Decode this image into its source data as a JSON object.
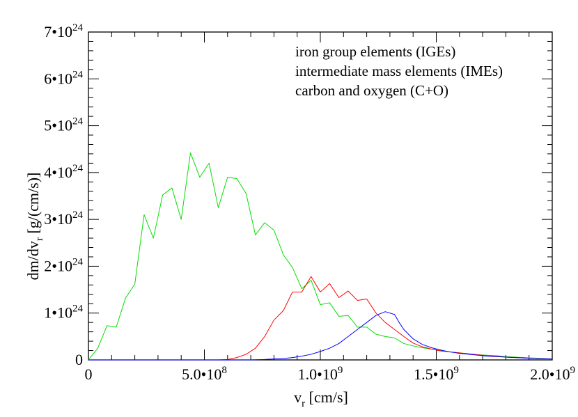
{
  "chart_data": {
    "type": "line",
    "title": "",
    "xlabel": {
      "main": "v",
      "sub": "r",
      "rest": " [cm/s]"
    },
    "ylabel": {
      "main": "dm/dv",
      "sub": "r",
      "rest": " [g/(cm/s)]"
    },
    "xlim": [
      0,
      2000000000
    ],
    "ylim": [
      0,
      7e+24
    ],
    "legend_placement": "top-right",
    "grid": false,
    "x_ticks": [
      {
        "value": 0,
        "mantissa": "0",
        "exponent": ""
      },
      {
        "value": 500000000,
        "mantissa": "5.0•10",
        "exponent": "8"
      },
      {
        "value": 1000000000,
        "mantissa": "1.0•10",
        "exponent": "9"
      },
      {
        "value": 1500000000,
        "mantissa": "1.5•10",
        "exponent": "9"
      },
      {
        "value": 2000000000,
        "mantissa": "2.0•10",
        "exponent": "9"
      }
    ],
    "y_ticks": [
      {
        "value": 0,
        "mantissa": "0",
        "exponent": ""
      },
      {
        "value": 1e+24,
        "mantissa": "1•10",
        "exponent": "24"
      },
      {
        "value": 2e+24,
        "mantissa": "2•10",
        "exponent": "24"
      },
      {
        "value": 3e+24,
        "mantissa": "3•10",
        "exponent": "24"
      },
      {
        "value": 4e+24,
        "mantissa": "4•10",
        "exponent": "24"
      },
      {
        "value": 5e+24,
        "mantissa": "5•10",
        "exponent": "24"
      },
      {
        "value": 6e+24,
        "mantissa": "6•10",
        "exponent": "24"
      },
      {
        "value": 7e+24,
        "mantissa": "7•10",
        "exponent": "24"
      }
    ],
    "x_minor_step": 100000000,
    "y_minor_step": 200000000000000000000000,
    "series": [
      {
        "name": "iron group elements  (IGEs)",
        "color": "#00e000",
        "x": [
          0,
          40000000,
          80000000,
          120000000,
          160000000,
          200000000,
          240000000,
          280000000,
          320000000,
          360000000,
          400000000,
          440000000,
          480000000,
          520000000,
          560000000,
          600000000,
          640000000,
          680000000,
          720000000,
          760000000,
          800000000,
          840000000,
          880000000,
          920000000,
          960000000,
          1000000000,
          1040000000,
          1080000000,
          1120000000,
          1160000000,
          1200000000,
          1240000000,
          1280000000,
          1320000000,
          1360000000,
          1400000000,
          1440000000,
          1480000000,
          1520000000,
          1560000000,
          1600000000,
          1640000000,
          1680000000,
          1720000000,
          1760000000,
          1800000000,
          1840000000,
          1880000000,
          1920000000,
          1960000000,
          2000000000
        ],
        "y": [
          0.0,
          2.5e+23,
          7.3e+23,
          7e+23,
          1.32e+24,
          1.62e+24,
          3.1e+24,
          2.6e+24,
          3.52e+24,
          3.67e+24,
          3e+24,
          4.42e+24,
          3.9e+24,
          4.2e+24,
          3.25e+24,
          3.9e+24,
          3.87e+24,
          3.55e+24,
          2.67e+24,
          2.93e+24,
          2.77e+24,
          2.25e+24,
          1.97e+24,
          1.52e+24,
          1.7e+24,
          1.18e+24,
          1.22e+24,
          9.3e+23,
          9.5e+23,
          7e+23,
          7e+23,
          5.5e+23,
          5e+23,
          4.7e+23,
          3.5e+23,
          3e+23,
          2.6e+23,
          2.3e+23,
          2e+23,
          1.7e+23,
          1.5e+23,
          1.3e+23,
          1.1e+23,
          1e+23,
          9e+22,
          7e+22,
          6e+22,
          5e+22,
          4e+22,
          3e+22,
          2e+22
        ]
      },
      {
        "name": "intermediate mass elements  (IMEs)",
        "color": "#ff0000",
        "x": [
          0,
          560000000,
          600000000,
          640000000,
          680000000,
          720000000,
          760000000,
          800000000,
          840000000,
          880000000,
          920000000,
          960000000,
          1000000000,
          1040000000,
          1080000000,
          1120000000,
          1160000000,
          1200000000,
          1240000000,
          1280000000,
          1320000000,
          1360000000,
          1400000000,
          1440000000,
          1480000000,
          1520000000,
          1560000000,
          1600000000,
          1640000000,
          1680000000,
          1720000000,
          1760000000,
          1800000000,
          1840000000,
          1880000000,
          1920000000,
          1960000000,
          2000000000
        ],
        "y": [
          0.0,
          0.0,
          1e+22,
          5e+22,
          1.2e+23,
          2.5e+23,
          5e+23,
          8.5e+23,
          1.05e+24,
          1.45e+24,
          1.45e+24,
          1.78e+24,
          1.45e+24,
          1.63e+24,
          1.33e+24,
          1.47e+24,
          1.27e+24,
          1.3e+24,
          1e+24,
          8e+23,
          6.5e+23,
          5e+23,
          3.6e+23,
          2.8e+23,
          2.3e+23,
          1.9e+23,
          1.7e+23,
          1.5e+23,
          1.3e+23,
          1.1e+23,
          9e+22,
          8e+22,
          6e+22,
          5e+22,
          4e+22,
          3e+22,
          2.5e+22,
          2e+22
        ]
      },
      {
        "name": "carbon and oxygen  (C+O)",
        "color": "#0000ff",
        "x": [
          0,
          700000000,
          760000000,
          800000000,
          840000000,
          880000000,
          920000000,
          960000000,
          1000000000,
          1040000000,
          1080000000,
          1120000000,
          1160000000,
          1200000000,
          1240000000,
          1280000000,
          1320000000,
          1340000000,
          1360000000,
          1400000000,
          1440000000,
          1480000000,
          1520000000,
          1560000000,
          1600000000,
          1640000000,
          1680000000,
          1720000000,
          1760000000,
          1800000000,
          1840000000,
          1880000000,
          1920000000,
          1960000000,
          2000000000
        ],
        "y": [
          0.0,
          0.0,
          1e+22,
          2e+22,
          3e+22,
          5e+22,
          8e+22,
          1.2e+23,
          1.8e+23,
          2.5e+23,
          3.5e+23,
          5e+23,
          6.5e+23,
          8e+23,
          9.5e+23,
          1.03e+24,
          9.7e+23,
          8e+23,
          6.5e+23,
          4.5e+23,
          3.3e+23,
          2.6e+23,
          2.1e+23,
          1.7e+23,
          1.4e+23,
          1.2e+23,
          1e+23,
          8e+22,
          7e+22,
          6e+22,
          5e+22,
          4e+22,
          3e+22,
          2.5e+22,
          2e+22
        ]
      }
    ]
  }
}
